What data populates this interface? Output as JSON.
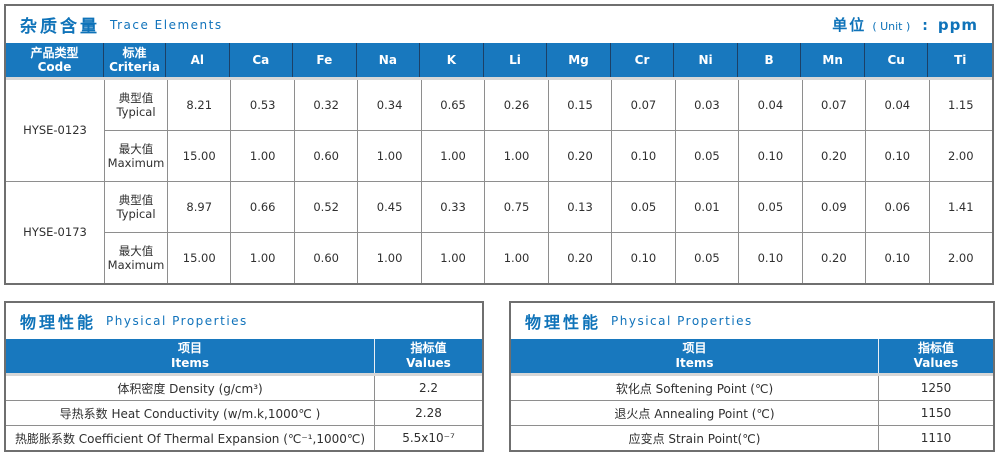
{
  "colors": {
    "header_blue": "#1878be",
    "title_blue": "#0f73b9",
    "header_separator_navy": "#1c4066",
    "grid_gray": "#8e8e8e",
    "outer_border": "#6f6f6f"
  },
  "trace_table": {
    "title_cn": "杂质含量",
    "title_en": "Trace Elements",
    "unit_label_cn": "单位",
    "unit_label_en": "( Unit )",
    "unit_sep": ":",
    "unit_value": "ppm",
    "col1_header_cn": "产品类型",
    "col1_header_en": "Code",
    "col2_header_cn": "标准",
    "col2_header_en": "Criteria",
    "elements": [
      "Al",
      "Ca",
      "Fe",
      "Na",
      "K",
      "Li",
      "Mg",
      "Cr",
      "Ni",
      "B",
      "Mn",
      "Cu",
      "Ti"
    ],
    "products": [
      {
        "code": "HYSE-0123",
        "rows": [
          {
            "label_cn": "典型值",
            "label_en": "Typical",
            "values": [
              "8.21",
              "0.53",
              "0.32",
              "0.34",
              "0.65",
              "0.26",
              "0.15",
              "0.07",
              "0.03",
              "0.04",
              "0.07",
              "0.04",
              "1.15"
            ]
          },
          {
            "label_cn": "最大值",
            "label_en": "Maximum",
            "values": [
              "15.00",
              "1.00",
              "0.60",
              "1.00",
              "1.00",
              "1.00",
              "0.20",
              "0.10",
              "0.05",
              "0.10",
              "0.20",
              "0.10",
              "2.00"
            ]
          }
        ]
      },
      {
        "code": "HYSE-0173",
        "rows": [
          {
            "label_cn": "典型值",
            "label_en": "Typical",
            "values": [
              "8.97",
              "0.66",
              "0.52",
              "0.45",
              "0.33",
              "0.75",
              "0.13",
              "0.05",
              "0.01",
              "0.05",
              "0.09",
              "0.06",
              "1.41"
            ]
          },
          {
            "label_cn": "最大值",
            "label_en": "Maximum",
            "values": [
              "15.00",
              "1.00",
              "0.60",
              "1.00",
              "1.00",
              "1.00",
              "0.20",
              "0.10",
              "0.05",
              "0.10",
              "0.20",
              "0.10",
              "2.00"
            ]
          }
        ]
      }
    ]
  },
  "physical_left": {
    "title_cn": "物理性能",
    "title_en": "Physical Properties",
    "items_header_cn": "项目",
    "items_header_en": "Items",
    "values_header_cn": "指标值",
    "values_header_en": "Values",
    "rows": [
      {
        "item": "体积密度 Density (g/cm³)",
        "value": "2.2"
      },
      {
        "item": "导热系数 Heat Conductivity (w/m.k,1000℃ )",
        "value": "2.28"
      },
      {
        "item": "热膨胀系数 Coefficient Of Thermal Expansion (℃⁻¹,1000℃)",
        "value": "5.5x10⁻⁷"
      }
    ]
  },
  "physical_right": {
    "title_cn": "物理性能",
    "title_en": "Physical Properties",
    "items_header_cn": "项目",
    "items_header_en": "Items",
    "values_header_cn": "指标值",
    "values_header_en": "Values",
    "rows": [
      {
        "item": "软化点 Softening Point (℃)",
        "value": "1250"
      },
      {
        "item": "退火点 Annealing Point (℃)",
        "value": "1150"
      },
      {
        "item": "应变点 Strain Point(℃)",
        "value": "1110"
      }
    ]
  }
}
